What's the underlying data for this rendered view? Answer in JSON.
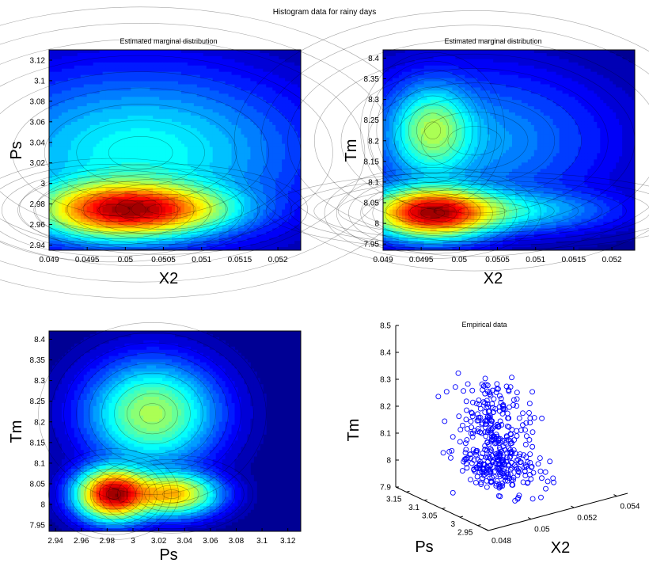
{
  "figure": {
    "title": "Histogram data for rainy days"
  },
  "chart_data": [
    {
      "type": "contour",
      "title": "Estimated marginal distribution",
      "xlabel": "X2",
      "ylabel": "Ps",
      "xlim": [
        0.049,
        0.0523
      ],
      "ylim": [
        2.935,
        3.13
      ],
      "xticks": [
        0.049,
        0.0495,
        0.05,
        0.0505,
        0.051,
        0.0515,
        0.052
      ],
      "xtick_labels": [
        "0.049",
        "0.0495",
        "0.05",
        "0.0505",
        "0.051",
        "0.0515",
        "0.052"
      ],
      "yticks": [
        2.94,
        2.96,
        2.98,
        3.0,
        3.02,
        3.04,
        3.06,
        3.08,
        3.1,
        3.12
      ],
      "ytick_labels": [
        "2.94",
        "2.96",
        "2.98",
        "3",
        "3.02",
        "3.04",
        "3.06",
        "3.08",
        "3.1",
        "3.12"
      ],
      "colormap": "jet",
      "peaks": [
        {
          "x": 0.04985,
          "y": 2.974,
          "sx": 0.0006,
          "sy": 0.016,
          "amp": 1.0
        },
        {
          "x": 0.0505,
          "y": 2.975,
          "sx": 0.0006,
          "sy": 0.014,
          "amp": 0.6
        },
        {
          "x": 0.0502,
          "y": 3.03,
          "sx": 0.0012,
          "sy": 0.045,
          "amp": 0.28
        }
      ],
      "grid": false
    },
    {
      "type": "contour",
      "title": "Estimated marginal distribution",
      "xlabel": "X2",
      "ylabel": "Tm",
      "xlim": [
        0.049,
        0.0523
      ],
      "ylim": [
        7.935,
        8.42
      ],
      "xticks": [
        0.049,
        0.0495,
        0.05,
        0.0505,
        0.051,
        0.0515,
        0.052
      ],
      "xtick_labels": [
        "0.049",
        "0.0495",
        "0.05",
        "0.0505",
        "0.051",
        "0.0515",
        "0.052"
      ],
      "yticks": [
        7.95,
        8.0,
        8.05,
        8.1,
        8.15,
        8.2,
        8.25,
        8.3,
        8.35,
        8.4
      ],
      "ytick_labels": [
        "7.95",
        "8",
        "8.05",
        "8.1",
        "8.15",
        "8.2",
        "8.25",
        "8.3",
        "8.35",
        "8.4"
      ],
      "colormap": "jet",
      "peaks": [
        {
          "x": 0.04965,
          "y": 8.025,
          "sx": 0.00045,
          "sy": 0.035,
          "amp": 1.0
        },
        {
          "x": 0.0503,
          "y": 8.03,
          "sx": 0.0009,
          "sy": 0.03,
          "amp": 0.22
        },
        {
          "x": 0.04965,
          "y": 8.225,
          "sx": 0.0003,
          "sy": 0.06,
          "amp": 0.32
        },
        {
          "x": 0.0502,
          "y": 8.2,
          "sx": 0.001,
          "sy": 0.1,
          "amp": 0.12
        }
      ],
      "grid": false
    },
    {
      "type": "contour",
      "title": "",
      "xlabel": "Ps",
      "ylabel": "Tm",
      "xlim": [
        2.935,
        3.13
      ],
      "ylim": [
        7.935,
        8.42
      ],
      "xticks": [
        2.94,
        2.96,
        2.98,
        3.0,
        3.02,
        3.04,
        3.06,
        3.08,
        3.1,
        3.12
      ],
      "xtick_labels": [
        "2.94",
        "2.96",
        "2.98",
        "3",
        "3.02",
        "3.04",
        "3.06",
        "3.08",
        "3.1",
        "3.12"
      ],
      "yticks": [
        7.95,
        8.0,
        8.05,
        8.1,
        8.15,
        8.2,
        8.25,
        8.3,
        8.35,
        8.4
      ],
      "ytick_labels": [
        "7.95",
        "8",
        "8.05",
        "8.1",
        "8.15",
        "8.2",
        "8.25",
        "8.3",
        "8.35",
        "8.4"
      ],
      "colormap": "jet",
      "peaks": [
        {
          "x": 2.985,
          "y": 8.025,
          "sx": 0.016,
          "sy": 0.035,
          "amp": 1.0
        },
        {
          "x": 3.03,
          "y": 8.025,
          "sx": 0.02,
          "sy": 0.03,
          "amp": 0.55
        },
        {
          "x": 3.015,
          "y": 8.22,
          "sx": 0.028,
          "sy": 0.07,
          "amp": 0.35
        }
      ],
      "grid": false
    },
    {
      "type": "scatter3d",
      "title": "Empirical data",
      "xlabel": "X2",
      "ylabel": "Ps",
      "zlabel": "Tm",
      "xlim": [
        0.048,
        0.0545
      ],
      "ylim": [
        2.92,
        3.18
      ],
      "zlim": [
        7.9,
        8.5
      ],
      "xticks": [
        0.048,
        0.05,
        0.052,
        0.054
      ],
      "xtick_labels": [
        "0.048",
        "0.05",
        "0.052",
        "0.054"
      ],
      "yticks": [
        2.95,
        3.0,
        3.05,
        3.1,
        3.15
      ],
      "ytick_labels": [
        "2.95",
        "3",
        "3.05",
        "3.1",
        "3.15"
      ],
      "zticks": [
        7.9,
        8.0,
        8.1,
        8.2,
        8.3,
        8.4,
        8.5
      ],
      "ztick_labels": [
        "7.9",
        "8",
        "8.1",
        "8.2",
        "8.3",
        "8.4",
        "8.5"
      ],
      "marker": "circle",
      "marker_color": "#0000ff",
      "n_points": 420,
      "clusters": [
        {
          "x": 0.0502,
          "y": 3.02,
          "z": 8.03,
          "sx": 0.0006,
          "sy": 0.04,
          "sz": 0.04,
          "weight": 0.55
        },
        {
          "x": 0.05,
          "y": 3.02,
          "z": 8.2,
          "sx": 0.0006,
          "sy": 0.04,
          "sz": 0.07,
          "weight": 0.45
        }
      ]
    }
  ]
}
